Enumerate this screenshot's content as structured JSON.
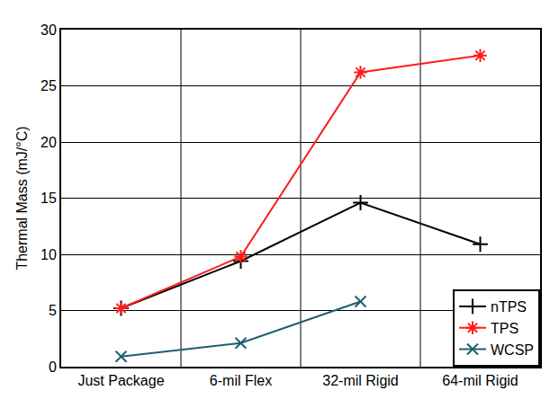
{
  "chart_data": {
    "type": "line",
    "y_label": "Thermal Mass (mJ/°C)",
    "categories": [
      "Just Package",
      "6-mil Flex",
      "32-mil Rigid",
      "64-mil Rigid"
    ],
    "series": [
      {
        "name": "nTPS",
        "color": "#000000",
        "marker": "cross",
        "line_style": "solid",
        "values": [
          5.2,
          9.4,
          14.6,
          10.9
        ]
      },
      {
        "name": "TPS",
        "color": "#ff1a1a",
        "marker": "asterisk",
        "line_style": "solid",
        "values": [
          5.2,
          9.8,
          26.2,
          27.7
        ]
      },
      {
        "name": "WCSP",
        "color": "#1f5f6e",
        "marker": "x",
        "line_style": "solid",
        "values": [
          0.9,
          2.1,
          5.8,
          null
        ]
      }
    ],
    "ylim": [
      0,
      30
    ],
    "yticks": [
      0,
      5,
      10,
      15,
      20,
      25,
      30
    ],
    "grid": true,
    "legend": "lower right"
  }
}
